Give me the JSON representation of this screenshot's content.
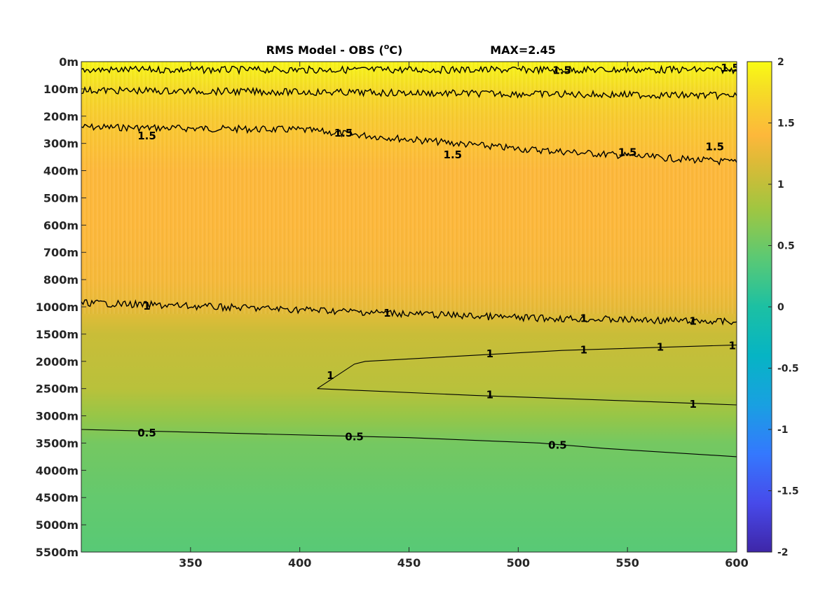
{
  "title": {
    "main_prefix": "RMS Model - OBS (",
    "main_sup": "o",
    "main_suffix": "C)",
    "max_text": "MAX=2.45"
  },
  "chart_data": {
    "type": "heatmap",
    "title": "RMS Model - OBS (°C)",
    "annotation": "MAX=2.45",
    "xlim": [
      300,
      600
    ],
    "x_ticks": [
      350,
      400,
      450,
      500,
      550,
      600
    ],
    "x_tick_labels": [
      "350",
      "400",
      "450",
      "500",
      "550",
      "600"
    ],
    "y_tick_labels": [
      "0m",
      "100m",
      "200m",
      "300m",
      "400m",
      "500m",
      "600m",
      "700m",
      "800m",
      "1000m",
      "1500m",
      "2000m",
      "2500m",
      "3000m",
      "3500m",
      "4000m",
      "4500m",
      "5000m",
      "5500m"
    ],
    "y_axis_direction": "depth increasing downward",
    "colorbar": {
      "colormap": "parula",
      "clim": [
        -2,
        2
      ],
      "ticks": [
        2,
        1.5,
        1,
        0.5,
        0,
        -0.5,
        -1,
        -1.5,
        -2
      ],
      "tick_labels": [
        "2",
        "1.5",
        "1",
        "0.5",
        "0",
        "-0.5",
        "-1",
        "-1.5",
        "-2"
      ]
    },
    "field_profile_by_depth": [
      {
        "depth": "0m",
        "value": 1.95
      },
      {
        "depth": "100m",
        "value": 1.75
      },
      {
        "depth": "200m",
        "value": 1.6
      },
      {
        "depth": "300m",
        "value": 1.5
      },
      {
        "depth": "400m",
        "value": 1.4
      },
      {
        "depth": "500m",
        "value": 1.4
      },
      {
        "depth": "600m",
        "value": 1.4
      },
      {
        "depth": "700m",
        "value": 1.38
      },
      {
        "depth": "800m",
        "value": 1.35
      },
      {
        "depth": "1000m",
        "value": 1.25
      },
      {
        "depth": "1500m",
        "value": 1.05
      },
      {
        "depth": "2000m",
        "value": 1.0
      },
      {
        "depth": "2500m",
        "value": 0.95
      },
      {
        "depth": "3000m",
        "value": 0.75
      },
      {
        "depth": "3500m",
        "value": 0.55
      },
      {
        "depth": "4000m",
        "value": 0.5
      },
      {
        "depth": "4500m",
        "value": 0.45
      },
      {
        "depth": "5000m",
        "value": 0.42
      },
      {
        "depth": "5500m",
        "value": 0.38
      }
    ],
    "contours": [
      {
        "level": 1.5,
        "label": "1.5",
        "depth_index_at_x": [
          [
            300,
            2.4
          ],
          [
            400,
            2.5
          ],
          [
            500,
            3.2
          ],
          [
            600,
            3.7
          ]
        ],
        "noisy": true
      },
      {
        "level": 1.5,
        "label": "1.5",
        "depth_index_at_x": [
          [
            300,
            0.3
          ],
          [
            600,
            0.3
          ]
        ],
        "noisy": true
      },
      {
        "level": 1.5,
        "label": "1.5",
        "depth_index_at_x": [
          [
            300,
            1.05
          ],
          [
            600,
            1.25
          ]
        ],
        "noisy": true
      },
      {
        "level": 1,
        "label": "1",
        "depth_index_at_x": [
          [
            300,
            8.85
          ],
          [
            400,
            9.1
          ],
          [
            500,
            9.4
          ],
          [
            600,
            9.55
          ]
        ],
        "noisy": true
      },
      {
        "level": 1,
        "label": "1",
        "depth_index_at_x": [
          [
            408,
            12.0
          ],
          [
            425,
            11.1
          ],
          [
            430,
            11.0
          ],
          [
            520,
            10.6
          ],
          [
            600,
            10.4
          ],
          [
            600,
            12.6
          ],
          [
            550,
            12.45
          ],
          [
            480,
            12.25
          ],
          [
            408,
            12.0
          ]
        ],
        "noisy": false
      },
      {
        "level": 0.5,
        "label": "0.5",
        "depth_index_at_x": [
          [
            300,
            13.5
          ],
          [
            450,
            13.8
          ],
          [
            510,
            14.0
          ],
          [
            540,
            14.2
          ],
          [
            600,
            14.5
          ]
        ],
        "noisy": false
      }
    ],
    "contour_labels": [
      {
        "text": "1",
        "x": 487,
        "depth_index": 10.7
      },
      {
        "text": "1",
        "x": 530,
        "depth_index": 10.55
      },
      {
        "text": "1",
        "x": 565,
        "depth_index": 10.45
      },
      {
        "text": "1",
        "x": 598,
        "depth_index": 10.4
      },
      {
        "text": "1",
        "x": 414,
        "depth_index": 11.5
      },
      {
        "text": "1",
        "x": 487,
        "depth_index": 12.2
      },
      {
        "text": "1",
        "x": 580,
        "depth_index": 12.55
      },
      {
        "text": "0.5",
        "x": 330,
        "depth_index": 13.6
      },
      {
        "text": "0.5",
        "x": 425,
        "depth_index": 13.75
      },
      {
        "text": "0.5",
        "x": 518,
        "depth_index": 14.05
      },
      {
        "text": "1",
        "x": 330,
        "depth_index": 8.95
      },
      {
        "text": "1",
        "x": 440,
        "depth_index": 9.2
      },
      {
        "text": "1",
        "x": 530,
        "depth_index": 9.4
      },
      {
        "text": "1",
        "x": 580,
        "depth_index": 9.5
      },
      {
        "text": "1.5",
        "x": 330,
        "depth_index": 2.7
      },
      {
        "text": "1.5",
        "x": 420,
        "depth_index": 2.6
      },
      {
        "text": "1.5",
        "x": 470,
        "depth_index": 3.4
      },
      {
        "text": "1.5",
        "x": 550,
        "depth_index": 3.3
      },
      {
        "text": "1.5",
        "x": 590,
        "depth_index": 3.1
      },
      {
        "text": "1.5",
        "x": 520,
        "depth_index": 0.3
      },
      {
        "text": "1.5",
        "x": 597,
        "depth_index": 0.2
      }
    ]
  }
}
